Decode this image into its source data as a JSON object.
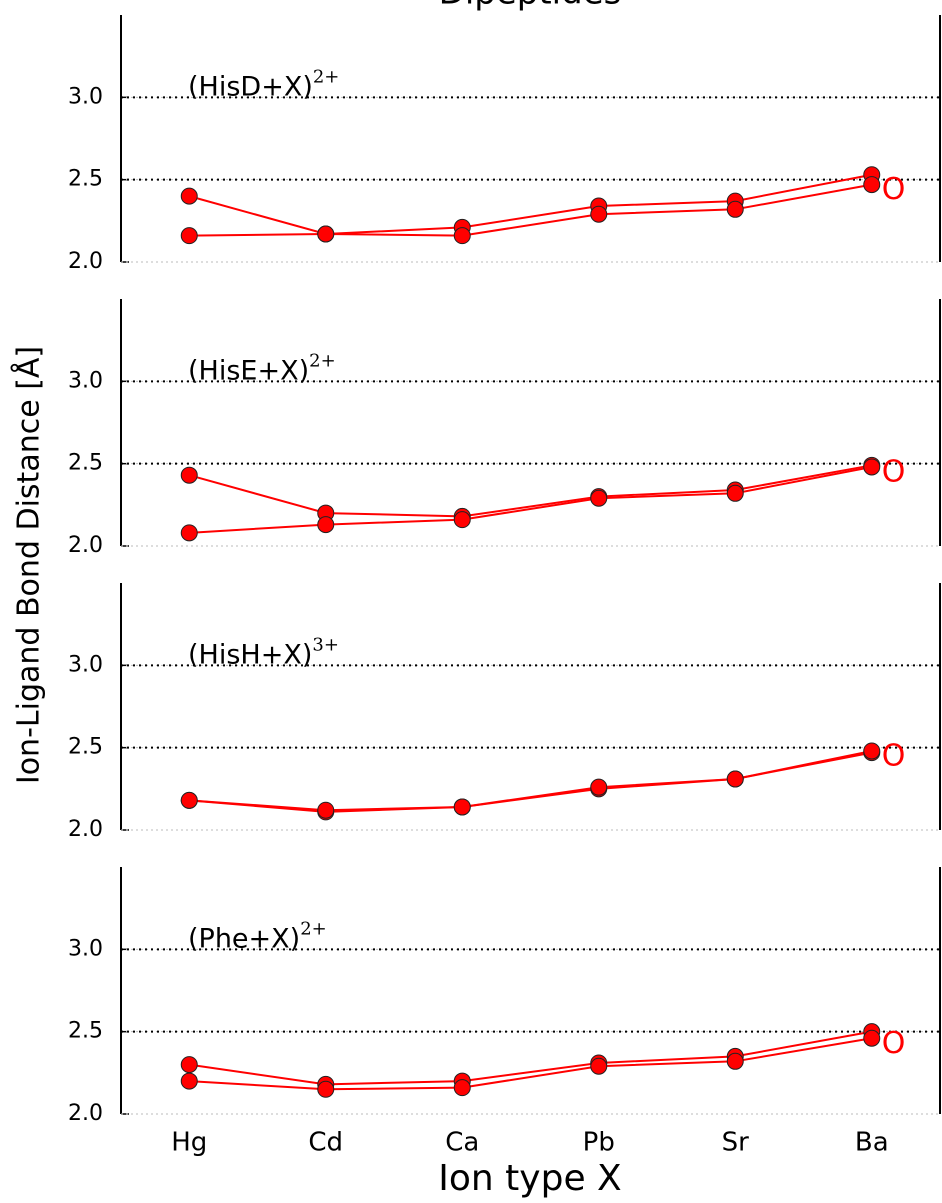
{
  "chart_data": {
    "type": "line",
    "title": "Dipeptides",
    "xlabel": "Ion type X",
    "ylabel": "Ion-Ligand Bond Distance [Å]",
    "categories": [
      "Hg",
      "Cd",
      "Ca",
      "Pb",
      "Sr",
      "Ba"
    ],
    "ylim": [
      2.0,
      3.5
    ],
    "yticks": [
      {
        "value": 2.0,
        "label": "2.0"
      },
      {
        "value": 2.5,
        "label": "2.5"
      },
      {
        "value": 3.0,
        "label": "3.0"
      }
    ],
    "hlines": [
      2.5,
      3.0
    ],
    "grid": true,
    "panels": [
      {
        "label": "(HisD+X)",
        "superscript": "2+",
        "annotation": "O",
        "series": [
          {
            "color": "#ff0000",
            "values": [
              2.4,
              2.17,
              2.21,
              2.34,
              2.37,
              2.53
            ]
          },
          {
            "color": "#ff0000",
            "values": [
              2.16,
              2.17,
              2.16,
              2.29,
              2.32,
              2.47
            ]
          }
        ]
      },
      {
        "label": "(HisE+X)",
        "superscript": "2+",
        "annotation": "O",
        "series": [
          {
            "color": "#ff0000",
            "values": [
              2.43,
              2.2,
              2.18,
              2.3,
              2.34,
              2.49
            ]
          },
          {
            "color": "#ff0000",
            "values": [
              2.08,
              2.13,
              2.16,
              2.29,
              2.32,
              2.48
            ]
          }
        ]
      },
      {
        "label": "(HisH+X)",
        "superscript": "3+",
        "annotation": "O",
        "series": [
          {
            "color": "#ff0000",
            "values": [
              2.18,
              2.11,
              2.14,
              2.25,
              2.31,
              2.47
            ]
          },
          {
            "color": "#ff0000",
            "values": [
              2.18,
              2.12,
              2.14,
              2.26,
              2.31,
              2.48
            ]
          }
        ]
      },
      {
        "label": "(Phe+X)",
        "superscript": "2+",
        "annotation": "O",
        "series": [
          {
            "color": "#ff0000",
            "values": [
              2.3,
              2.18,
              2.2,
              2.31,
              2.35,
              2.5
            ]
          },
          {
            "color": "#ff0000",
            "values": [
              2.2,
              2.15,
              2.16,
              2.29,
              2.32,
              2.46
            ]
          }
        ]
      }
    ]
  }
}
